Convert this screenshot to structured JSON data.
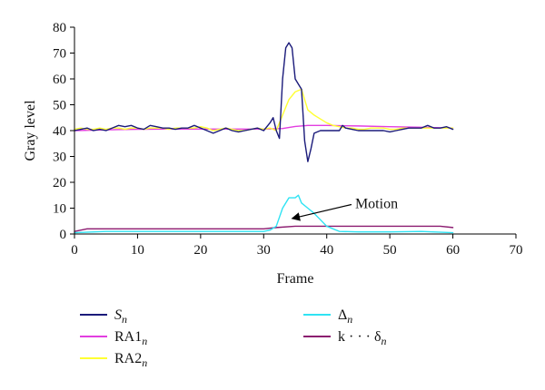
{
  "chart_data": {
    "type": "line",
    "xlabel": "Frame",
    "ylabel": "Gray level",
    "xlim": [
      0,
      70
    ],
    "ylim": [
      0,
      80
    ],
    "xticks": [
      0,
      10,
      20,
      30,
      40,
      50,
      60,
      70
    ],
    "yticks": [
      0,
      10,
      20,
      30,
      40,
      50,
      60,
      70,
      80
    ],
    "grid": false,
    "legend_position": "bottom",
    "series": [
      {
        "name": "S",
        "subscript": "n",
        "color": "#1a1a7a",
        "points": [
          [
            0,
            40
          ],
          [
            1,
            40.5
          ],
          [
            2,
            41
          ],
          [
            3,
            40
          ],
          [
            4,
            40.5
          ],
          [
            5,
            40
          ],
          [
            6,
            41
          ],
          [
            7,
            42
          ],
          [
            8,
            41.5
          ],
          [
            9,
            42
          ],
          [
            10,
            41
          ],
          [
            11,
            40.5
          ],
          [
            12,
            42
          ],
          [
            13,
            41.5
          ],
          [
            14,
            41
          ],
          [
            15,
            41
          ],
          [
            16,
            40.5
          ],
          [
            17,
            41
          ],
          [
            18,
            41
          ],
          [
            19,
            42
          ],
          [
            20,
            41
          ],
          [
            21,
            40
          ],
          [
            22,
            39
          ],
          [
            23,
            40
          ],
          [
            24,
            41
          ],
          [
            25,
            40
          ],
          [
            26,
            39.5
          ],
          [
            27,
            40
          ],
          [
            28,
            40.5
          ],
          [
            29,
            41
          ],
          [
            30,
            40
          ],
          [
            31,
            43
          ],
          [
            31.5,
            45
          ],
          [
            32,
            40
          ],
          [
            32.5,
            37
          ],
          [
            33,
            60
          ],
          [
            33.5,
            72
          ],
          [
            34,
            74
          ],
          [
            34.5,
            72
          ],
          [
            35,
            60
          ],
          [
            35.5,
            58
          ],
          [
            36,
            56
          ],
          [
            36.5,
            36
          ],
          [
            37,
            28
          ],
          [
            37.5,
            33
          ],
          [
            38,
            39
          ],
          [
            39,
            40
          ],
          [
            40,
            40
          ],
          [
            41,
            40
          ],
          [
            42,
            40
          ],
          [
            42.5,
            42
          ],
          [
            43,
            41
          ],
          [
            44,
            40.5
          ],
          [
            45,
            40
          ],
          [
            46,
            40
          ],
          [
            47,
            40
          ],
          [
            48,
            40
          ],
          [
            49,
            40
          ],
          [
            50,
            39.5
          ],
          [
            51,
            40
          ],
          [
            52,
            40.5
          ],
          [
            53,
            41
          ],
          [
            54,
            41
          ],
          [
            55,
            41
          ],
          [
            56,
            42
          ],
          [
            57,
            41
          ],
          [
            58,
            41
          ],
          [
            59,
            41.5
          ],
          [
            60,
            40.5
          ]
        ]
      },
      {
        "name": "RA1",
        "subscript": "n",
        "color": "#e23ee0",
        "points": [
          [
            0,
            40
          ],
          [
            5,
            40.3
          ],
          [
            10,
            40.5
          ],
          [
            15,
            40.6
          ],
          [
            20,
            40.6
          ],
          [
            25,
            40.6
          ],
          [
            30,
            40.6
          ],
          [
            33,
            40.8
          ],
          [
            35,
            41.6
          ],
          [
            37,
            42
          ],
          [
            40,
            42
          ],
          [
            45,
            41.8
          ],
          [
            50,
            41.5
          ],
          [
            55,
            41.3
          ],
          [
            60,
            41
          ]
        ]
      },
      {
        "name": "RA2",
        "subscript": "n",
        "color": "#ffff33",
        "points": [
          [
            0,
            40.5
          ],
          [
            1,
            41
          ],
          [
            2,
            40.5
          ],
          [
            3,
            40.5
          ],
          [
            4,
            41
          ],
          [
            5,
            40.5
          ],
          [
            6,
            41
          ],
          [
            7,
            41
          ],
          [
            8,
            40.5
          ],
          [
            9,
            41
          ],
          [
            10,
            41
          ],
          [
            11,
            40.5
          ],
          [
            12,
            41
          ],
          [
            13,
            41
          ],
          [
            14,
            41
          ],
          [
            15,
            40.5
          ],
          [
            16,
            41
          ],
          [
            17,
            41
          ],
          [
            18,
            41
          ],
          [
            19,
            41
          ],
          [
            20,
            41.5
          ],
          [
            21,
            41
          ],
          [
            22,
            40
          ],
          [
            23,
            40.5
          ],
          [
            24,
            41
          ],
          [
            25,
            40.5
          ],
          [
            26,
            40
          ],
          [
            27,
            40
          ],
          [
            28,
            40.5
          ],
          [
            29,
            41
          ],
          [
            30,
            40.5
          ],
          [
            31,
            41
          ],
          [
            32,
            40
          ],
          [
            32.5,
            43
          ],
          [
            33,
            46
          ],
          [
            34,
            52
          ],
          [
            35,
            55
          ],
          [
            36,
            56
          ],
          [
            36.5,
            52
          ],
          [
            37,
            48
          ],
          [
            38,
            46
          ],
          [
            39,
            44.5
          ],
          [
            40,
            43
          ],
          [
            41,
            42
          ],
          [
            42,
            41.5
          ],
          [
            43,
            41
          ],
          [
            44,
            41
          ],
          [
            45,
            40.5
          ],
          [
            46,
            40.5
          ],
          [
            47,
            41
          ],
          [
            48,
            41
          ],
          [
            49,
            41
          ],
          [
            50,
            40.5
          ],
          [
            51,
            40.5
          ],
          [
            52,
            41
          ],
          [
            53,
            41
          ],
          [
            54,
            41
          ],
          [
            55,
            41
          ],
          [
            56,
            41
          ],
          [
            57,
            41
          ],
          [
            58,
            41
          ],
          [
            59,
            41
          ],
          [
            60,
            41
          ]
        ]
      },
      {
        "name": "Δ",
        "subscript": "n",
        "color": "#2fe3f3",
        "points": [
          [
            0,
            0.5
          ],
          [
            5,
            1
          ],
          [
            10,
            1
          ],
          [
            15,
            1
          ],
          [
            20,
            1
          ],
          [
            25,
            1
          ],
          [
            30,
            1
          ],
          [
            31,
            1.5
          ],
          [
            32,
            3
          ],
          [
            33,
            10
          ],
          [
            34,
            14
          ],
          [
            35,
            14
          ],
          [
            35.5,
            15
          ],
          [
            36,
            12
          ],
          [
            37,
            10
          ],
          [
            38,
            8
          ],
          [
            39,
            5.5
          ],
          [
            40,
            3
          ],
          [
            41,
            2
          ],
          [
            42,
            1
          ],
          [
            45,
            0.8
          ],
          [
            50,
            0.8
          ],
          [
            55,
            1
          ],
          [
            60,
            0.5
          ]
        ]
      },
      {
        "name": "k · · · δ",
        "subscript": "n",
        "color": "#8b1a6f",
        "points": [
          [
            0,
            1
          ],
          [
            2,
            2
          ],
          [
            5,
            2
          ],
          [
            10,
            2
          ],
          [
            15,
            2
          ],
          [
            20,
            2
          ],
          [
            25,
            2
          ],
          [
            28,
            2
          ],
          [
            30,
            2
          ],
          [
            32,
            2.5
          ],
          [
            35,
            3
          ],
          [
            40,
            3
          ],
          [
            45,
            3
          ],
          [
            50,
            3
          ],
          [
            55,
            3
          ],
          [
            58,
            3
          ],
          [
            60,
            2.5
          ]
        ]
      }
    ],
    "annotations": [
      {
        "text": "Motion",
        "x": 44.5,
        "y": 10,
        "arrow_to": [
          34.5,
          6
        ]
      }
    ]
  }
}
